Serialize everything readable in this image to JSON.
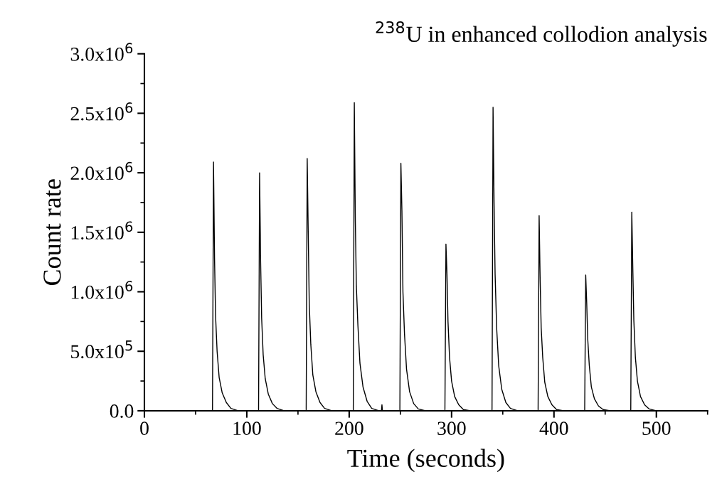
{
  "chart_data": {
    "type": "line",
    "title": "$^{238}$U in enhanced collodion analysis",
    "xlabel": "Time (seconds)",
    "ylabel": "Count rate",
    "x": [
      0,
      66.5,
      67.5,
      68.5,
      69.5,
      71,
      73,
      76,
      80,
      84.5,
      91.5,
      111.5,
      112.5,
      113.5,
      114.5,
      116,
      118,
      121,
      125,
      129.5,
      136.5,
      158,
      159,
      160,
      161,
      162.5,
      164.5,
      167.5,
      171.5,
      176,
      183,
      204,
      205,
      206,
      207,
      208.5,
      210.5,
      213.5,
      217.5,
      222,
      229,
      231.5,
      232,
      232.5,
      249.5,
      250.5,
      251.5,
      252.5,
      254,
      256,
      259,
      263,
      267.5,
      274.5,
      293.5,
      294.5,
      295.5,
      296.5,
      298,
      300,
      303,
      307,
      311.5,
      318.5,
      339.5,
      340.5,
      341.5,
      342.5,
      344,
      346,
      349,
      353,
      357.5,
      364.5,
      384.5,
      385.5,
      386.5,
      387.5,
      389,
      391,
      394,
      398,
      402.5,
      409.5,
      430,
      431,
      432,
      433,
      434.5,
      436.5,
      439.5,
      443.5,
      448,
      455,
      475,
      476,
      477,
      478,
      479.5,
      481.5,
      484.5,
      488.5,
      493,
      500
    ],
    "series": [
      {
        "color": "#000000",
        "values": [
          0,
          0,
          2090000,
          1280000,
          800000,
          500000,
          280000,
          150000,
          70000,
          20000,
          0,
          0,
          2000000,
          1260000,
          780000,
          470000,
          270000,
          140000,
          60000,
          20000,
          0,
          0,
          2120000,
          1500000,
          900000,
          560000,
          300000,
          160000,
          70000,
          20000,
          0,
          0,
          2590000,
          1600000,
          1050000,
          720000,
          400000,
          200000,
          80000,
          20000,
          0,
          0,
          50000,
          0,
          0,
          2080000,
          1680000,
          1000000,
          650000,
          350000,
          160000,
          60000,
          15000,
          0,
          0,
          1400000,
          1150000,
          750000,
          450000,
          250000,
          120000,
          50000,
          10000,
          0,
          0,
          2550000,
          1750000,
          1150000,
          700000,
          380000,
          180000,
          70000,
          20000,
          0,
          0,
          1640000,
          1100000,
          700000,
          450000,
          240000,
          120000,
          50000,
          10000,
          0,
          0,
          1140000,
          900000,
          600000,
          380000,
          200000,
          100000,
          40000,
          10000,
          0,
          0,
          1670000,
          1200000,
          760000,
          450000,
          250000,
          120000,
          50000,
          15000,
          0
        ]
      }
    ],
    "xlim": [
      0,
      550
    ],
    "xticks": [
      0,
      100,
      200,
      300,
      400,
      500
    ],
    "ylim": [
      0,
      3000000
    ],
    "yticks": [
      {
        "value": 0,
        "label": "0.0"
      },
      {
        "value": 500000,
        "label": "5.0x10$^{5}$"
      },
      {
        "value": 1000000,
        "label": "1.0x10$^{6}$"
      },
      {
        "value": 1500000,
        "label": "1.5x10$^{6}$"
      },
      {
        "value": 2000000,
        "label": "2.0x10$^{6}$"
      },
      {
        "value": 2500000,
        "label": "2.5x10$^{6}$"
      },
      {
        "value": 3000000,
        "label": "3.0x10$^{6}$"
      }
    ],
    "grid": false,
    "marker": "none",
    "line_style": "solid"
  }
}
